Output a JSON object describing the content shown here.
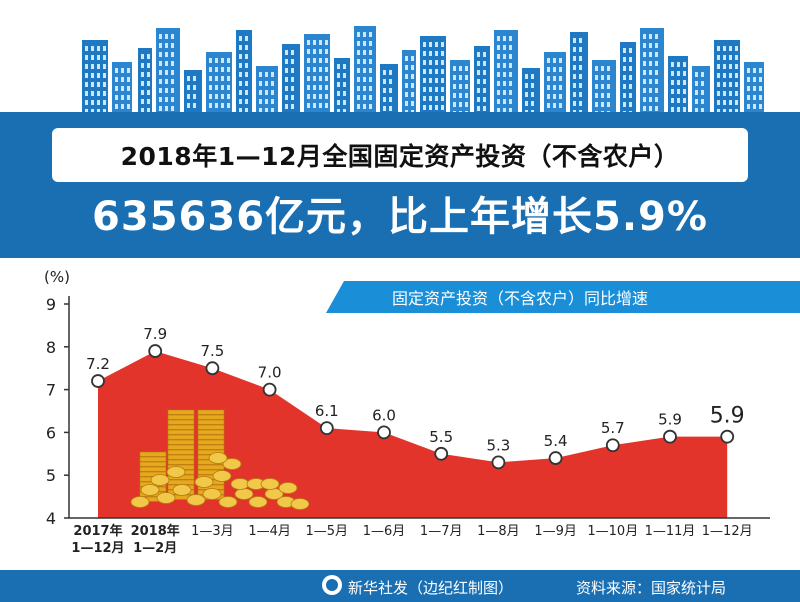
{
  "header": {
    "title": "2018年1—12月全国固定资产投资（不含农户）",
    "headline": "635636亿元，比上年增长5.9%"
  },
  "legend_label": "固定资产投资（不含农户）同比增速",
  "footer": {
    "credit": "新华社发（边纪红制图）",
    "source": "资料来源：国家统计局"
  },
  "colors": {
    "banner": "#1a6fb3",
    "legend": "#1a8fd8",
    "area": "#e2342a",
    "gold": "#e6a81e"
  },
  "chart_data": {
    "type": "area",
    "ylabel": "(%)",
    "ylim": [
      4,
      9
    ],
    "yticks": [
      "4",
      "5",
      "6",
      "7",
      "8",
      "9"
    ],
    "categories": [
      [
        "2017年",
        "1—12月"
      ],
      [
        "2018年",
        "1—2月"
      ],
      [
        "1—3月"
      ],
      [
        "1—4月"
      ],
      [
        "1—5月"
      ],
      [
        "1—6月"
      ],
      [
        "1—7月"
      ],
      [
        "1—8月"
      ],
      [
        "1—9月"
      ],
      [
        "1—10月"
      ],
      [
        "1—11月"
      ],
      [
        "1—12月"
      ]
    ],
    "values": [
      7.2,
      7.9,
      7.5,
      7.0,
      6.1,
      6.0,
      5.5,
      5.3,
      5.4,
      5.7,
      5.9,
      5.9
    ],
    "labels": [
      "7.2",
      "7.9",
      "7.5",
      "7.0",
      "6.1",
      "6.0",
      "5.5",
      "5.3",
      "5.4",
      "5.7",
      "5.9",
      "5.9"
    ],
    "grid": false
  }
}
